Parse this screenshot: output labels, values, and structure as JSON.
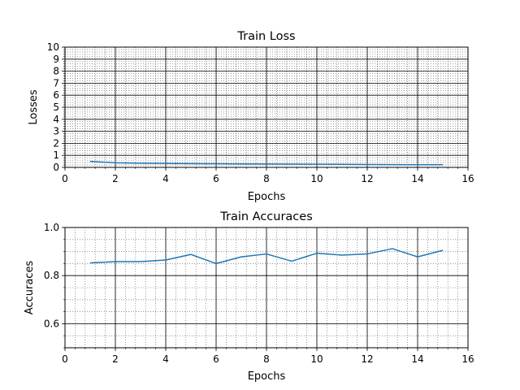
{
  "chart_data": [
    {
      "type": "line",
      "title": "Train Loss",
      "xlabel": "Epochs",
      "ylabel": "Losses",
      "xlim": [
        0,
        16
      ],
      "ylim": [
        0,
        10
      ],
      "x_ticks": [
        0,
        2,
        4,
        6,
        8,
        10,
        12,
        14,
        16
      ],
      "y_ticks": [
        0,
        1,
        2,
        3,
        4,
        5,
        6,
        7,
        8,
        9,
        10
      ],
      "x_minor_step": 0.4,
      "y_minor_step": 0.2,
      "grid": true,
      "series_color": "#1f77b4",
      "series": [
        {
          "x": [
            1,
            2,
            3,
            4,
            5,
            6,
            7,
            8,
            9,
            10,
            11,
            12,
            13,
            14,
            15
          ],
          "values": [
            0.5,
            0.38,
            0.35,
            0.33,
            0.31,
            0.3,
            0.29,
            0.28,
            0.27,
            0.26,
            0.25,
            0.24,
            0.23,
            0.22,
            0.22
          ]
        }
      ]
    },
    {
      "type": "line",
      "title": "Train Accuraces",
      "xlabel": "Epochs",
      "ylabel": "Accuraces",
      "xlim": [
        0,
        16
      ],
      "ylim": [
        0.5,
        1.0
      ],
      "x_ticks": [
        0,
        2,
        4,
        6,
        8,
        10,
        12,
        14,
        16
      ],
      "y_ticks": [
        0.6,
        0.8,
        1.0
      ],
      "y_tick_labels": [
        "0.6",
        "0.8",
        "1.0"
      ],
      "x_minor_step": 0.4,
      "y_minor_step": 0.05,
      "grid": true,
      "series_color": "#1f77b4",
      "series": [
        {
          "x": [
            1,
            2,
            3,
            4,
            5,
            6,
            7,
            8,
            9,
            10,
            11,
            12,
            13,
            14,
            15
          ],
          "values": [
            0.853,
            0.858,
            0.858,
            0.865,
            0.888,
            0.85,
            0.878,
            0.89,
            0.86,
            0.893,
            0.885,
            0.89,
            0.912,
            0.878,
            0.905
          ]
        }
      ]
    }
  ]
}
